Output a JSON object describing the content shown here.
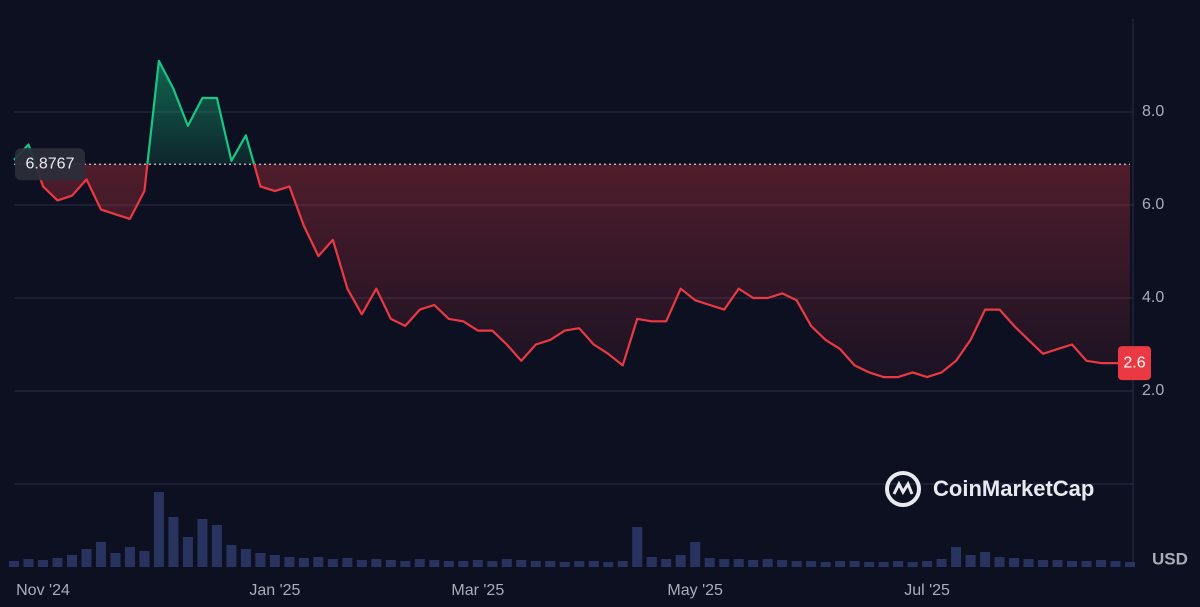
{
  "chart_data": {
    "type": "line",
    "categories": [
      null,
      null,
      "Nov '24",
      null,
      null,
      null,
      null,
      null,
      null,
      null,
      null,
      null,
      null,
      null,
      null,
      null,
      null,
      null,
      "Jan '25",
      null,
      null,
      null,
      null,
      null,
      null,
      null,
      null,
      null,
      null,
      null,
      null,
      null,
      "Mar '25",
      null,
      null,
      null,
      null,
      null,
      null,
      null,
      null,
      null,
      null,
      null,
      null,
      null,
      null,
      "May '25",
      null,
      null,
      null,
      null,
      null,
      null,
      null,
      null,
      null,
      null,
      null,
      null,
      null,
      null,
      null,
      "Jul '25",
      null,
      null,
      null,
      null,
      null,
      null,
      null,
      null,
      null,
      null,
      null,
      null,
      null,
      null
    ],
    "values": [
      6.97,
      7.3,
      6.4,
      6.1,
      6.2,
      6.55,
      5.9,
      5.8,
      5.7,
      6.3,
      9.1,
      8.5,
      7.7,
      8.3,
      8.3,
      6.95,
      7.5,
      6.4,
      6.3,
      6.4,
      5.55,
      4.9,
      5.25,
      4.2,
      3.65,
      4.2,
      3.55,
      3.4,
      3.75,
      3.85,
      3.55,
      3.5,
      3.3,
      3.3,
      3.0,
      2.65,
      3.0,
      3.1,
      3.3,
      3.35,
      3.0,
      2.8,
      2.55,
      3.55,
      3.5,
      3.5,
      4.2,
      3.95,
      3.85,
      3.75,
      4.2,
      4.0,
      4.0,
      4.1,
      3.95,
      3.4,
      3.1,
      2.9,
      2.55,
      2.4,
      2.3,
      2.3,
      2.4,
      2.3,
      2.4,
      2.65,
      3.1,
      3.75,
      3.75,
      3.4,
      3.1,
      2.8,
      2.9,
      3.0,
      2.65,
      2.6,
      2.6,
      2.6
    ],
    "volume": [
      6,
      8,
      7,
      9,
      12,
      18,
      25,
      14,
      20,
      16,
      75,
      50,
      30,
      48,
      42,
      22,
      18,
      14,
      12,
      10,
      9,
      10,
      8,
      9,
      7,
      8,
      7,
      6,
      8,
      7,
      6,
      6,
      7,
      6,
      8,
      7,
      6,
      6,
      5,
      6,
      6,
      5,
      6,
      40,
      10,
      8,
      12,
      25,
      9,
      8,
      8,
      7,
      8,
      7,
      6,
      6,
      5,
      6,
      6,
      5,
      5,
      6,
      5,
      6,
      8,
      20,
      12,
      15,
      10,
      9,
      8,
      7,
      7,
      6,
      6,
      7,
      6,
      5
    ],
    "baseline": 6.8767,
    "last_price_label": "2.6",
    "color_up": "#16c784",
    "color_down": "#ea3943",
    "ylim": [
      0,
      10
    ],
    "yticks": [
      {
        "value": 2,
        "label": "2.0"
      },
      {
        "value": 4,
        "label": "4.0"
      },
      {
        "value": 6,
        "label": "6.0"
      },
      {
        "value": 8,
        "label": "8.0"
      }
    ],
    "currency": "USD",
    "watermark": "CoinMarketCap"
  }
}
